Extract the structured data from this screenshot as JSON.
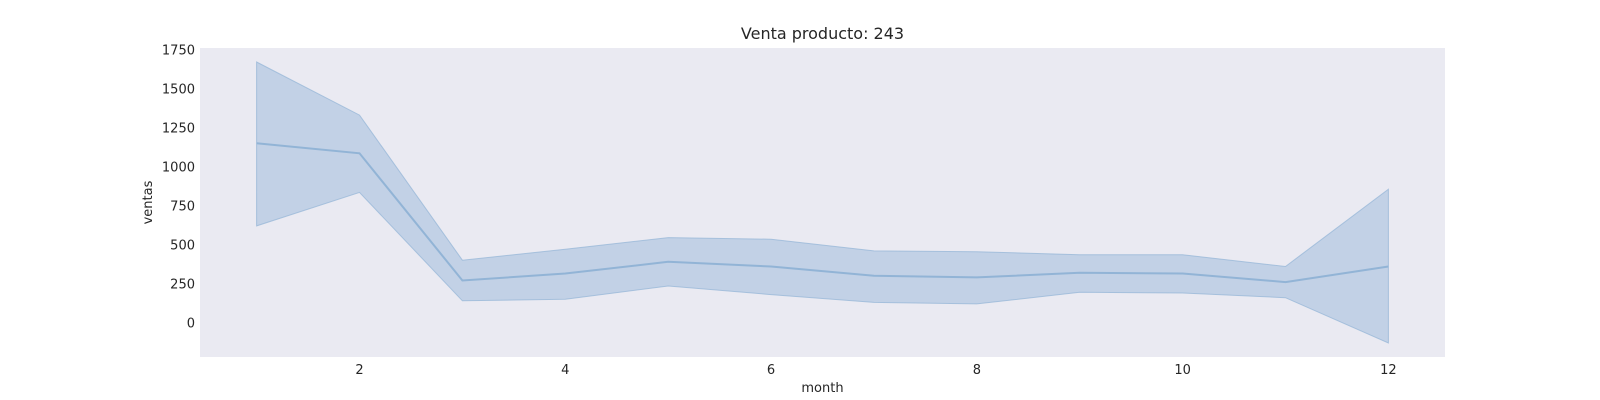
{
  "chart_data": {
    "type": "line",
    "title": "Venta producto: 243",
    "xlabel": "month",
    "ylabel": "ventas",
    "xlim": [
      0.45,
      12.55
    ],
    "ylim": [
      -220,
      1760
    ],
    "xticks": [
      2,
      4,
      6,
      8,
      10,
      12
    ],
    "yticks": [
      0,
      250,
      500,
      750,
      1000,
      1250,
      1500,
      1750
    ],
    "grid": false,
    "legend": "none",
    "background_color": "#eaeaf2",
    "series": [
      {
        "x": [
          1,
          2,
          3,
          4,
          5,
          6,
          7,
          8,
          9,
          10,
          11,
          12
        ],
        "values": [
          1150,
          1085,
          270,
          315,
          390,
          360,
          300,
          290,
          320,
          315,
          260,
          360
        ],
        "ci_lower": [
          620,
          835,
          140,
          150,
          235,
          180,
          130,
          120,
          195,
          190,
          160,
          -130
        ],
        "ci_upper": [
          1670,
          1330,
          400,
          470,
          545,
          535,
          460,
          455,
          435,
          435,
          360,
          855
        ],
        "color": "#92b4d6"
      }
    ]
  }
}
